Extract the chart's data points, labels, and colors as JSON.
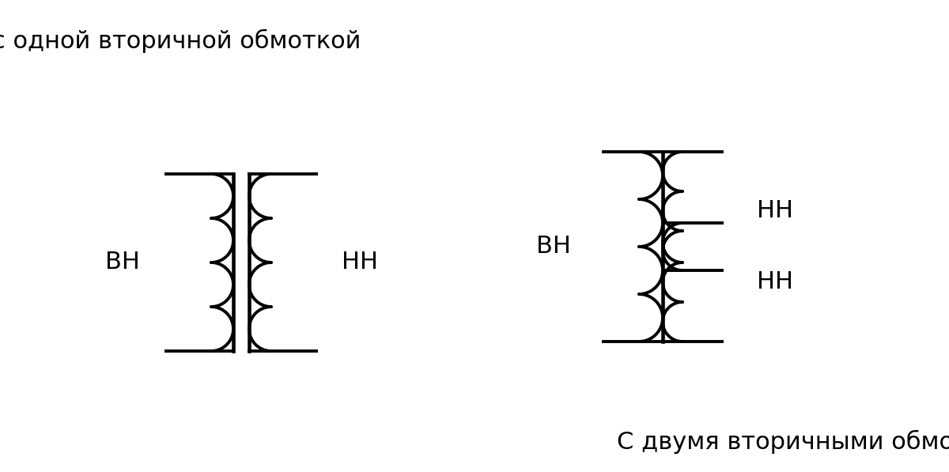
{
  "bg_color": "#ffffff",
  "line_color": "#000000",
  "line_width": 2.8,
  "text_color": "#000000",
  "label_vn1": "ВН",
  "label_nn1": "НН",
  "label_vn2": "ВН",
  "label_nn2_top": "НН",
  "label_nn2_bot": "НН",
  "title1": "с одной вторичной обмоткой",
  "title2": "С двумя вторичными обмотками",
  "font_size_label": 22,
  "font_size_title": 22
}
